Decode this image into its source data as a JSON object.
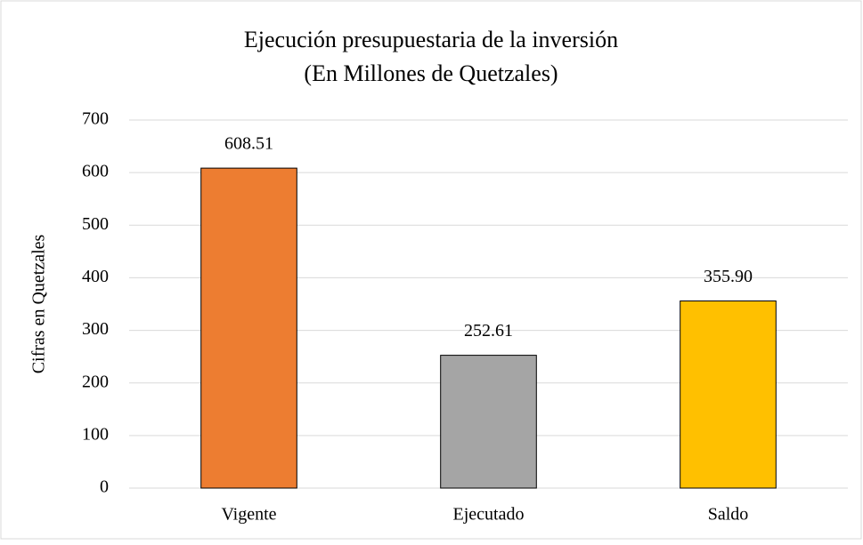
{
  "chart_data": {
    "type": "bar",
    "title": "Ejecución presupuestaria de la inversión",
    "subtitle": "(En Millones de Quetzales)",
    "y_label": "Cifras en Quetzales",
    "categories": [
      "Vigente",
      "Ejecutado",
      "Saldo"
    ],
    "values": [
      608.51,
      252.61,
      355.9
    ],
    "value_labels": [
      "608.51",
      "252.61",
      "355.90"
    ],
    "colors": [
      "#ed7d31",
      "#a5a5a5",
      "#ffc000"
    ],
    "ylim": [
      0,
      700
    ],
    "yticks": [
      0,
      100,
      200,
      300,
      400,
      500,
      600,
      700
    ],
    "grid": true
  }
}
